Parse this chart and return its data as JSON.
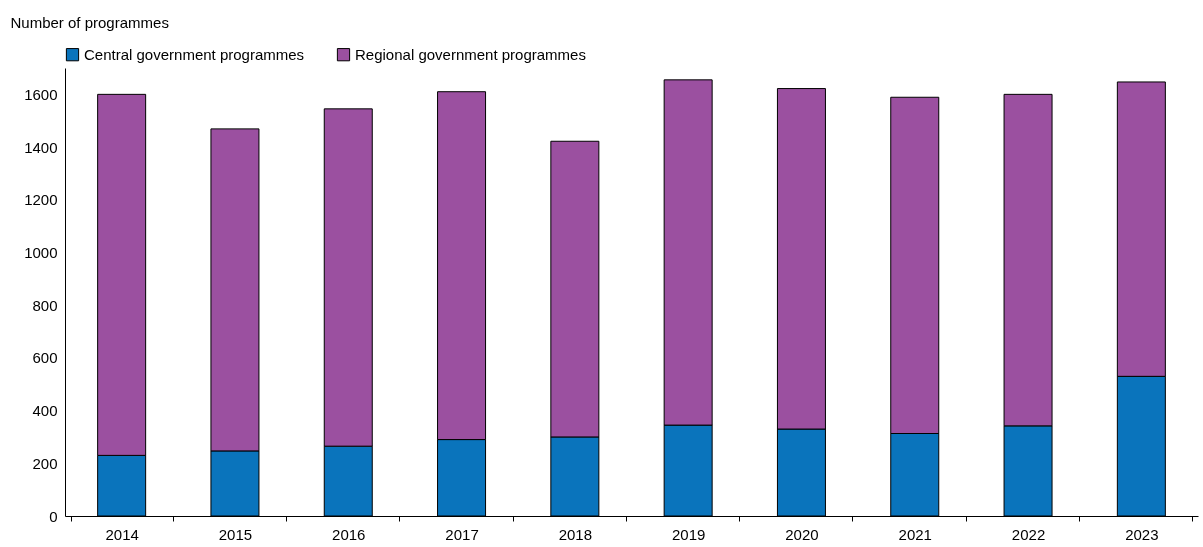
{
  "chart_data": {
    "type": "bar",
    "stacked": true,
    "ylabel": "Number of programmes",
    "categories": [
      "2014",
      "2015",
      "2016",
      "2017",
      "2018",
      "2019",
      "2020",
      "2021",
      "2022",
      "2023"
    ],
    "series": [
      {
        "name": "Central government programmes",
        "color": "#0a74bc",
        "values": [
          230,
          247,
          265,
          290,
          300,
          345,
          330,
          313,
          342,
          530
        ]
      },
      {
        "name": "Regional government programmes",
        "color": "#9b50a0",
        "values": [
          1370,
          1222,
          1280,
          1320,
          1122,
          1310,
          1292,
          1276,
          1258,
          1117
        ]
      }
    ],
    "ylim": [
      0,
      1700
    ],
    "yticks": [
      0,
      200,
      400,
      600,
      800,
      1000,
      1200,
      1400,
      1600
    ],
    "grid": false,
    "legend": "top"
  }
}
